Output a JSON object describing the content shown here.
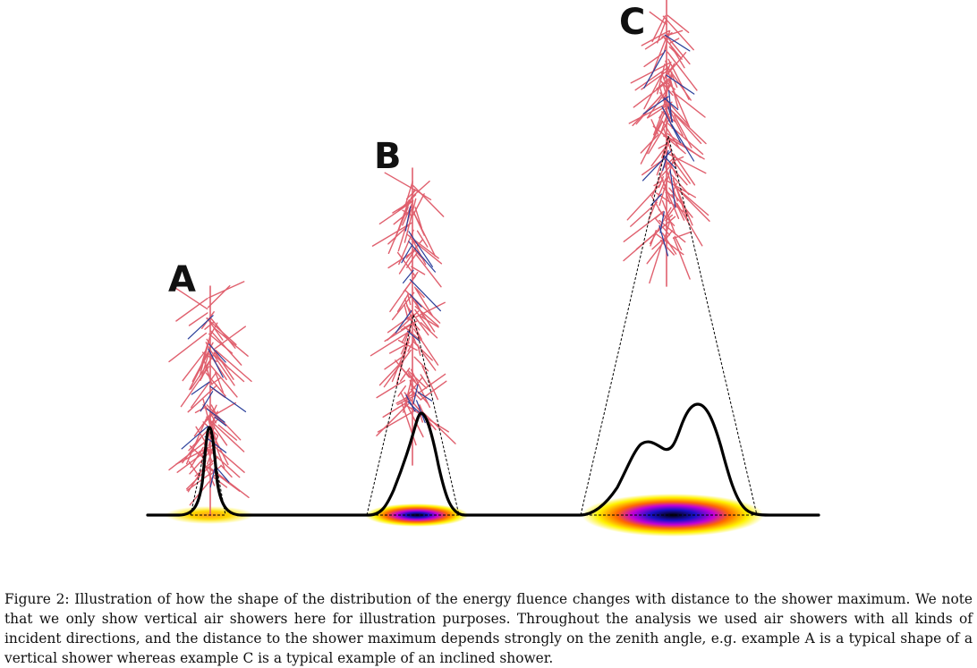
{
  "figure": {
    "panels": [
      {
        "label": "A"
      },
      {
        "label": "B"
      },
      {
        "label": "C"
      }
    ],
    "colors": {
      "shower_main": "#e0606e",
      "shower_secondary": "#2a3f9a",
      "profile_line": "#000000",
      "footprint_gradient": [
        "#000000",
        "#1a10c8",
        "#c400d8",
        "#ff6a00",
        "#fff200"
      ]
    }
  },
  "caption": {
    "text": "Figure 2: Illustration of how the shape of the distribution of the energy fluence changes with distance to the shower maximum. We note that we only show vertical air showers here for illustration purposes. Throughout the analysis we used air showers with all kinds of incident directions, and the distance to the shower maximum depends strongly on the zenith angle, e.g. example A is a typical shape of a vertical shower whereas example C is a typical example of an inclined shower."
  }
}
